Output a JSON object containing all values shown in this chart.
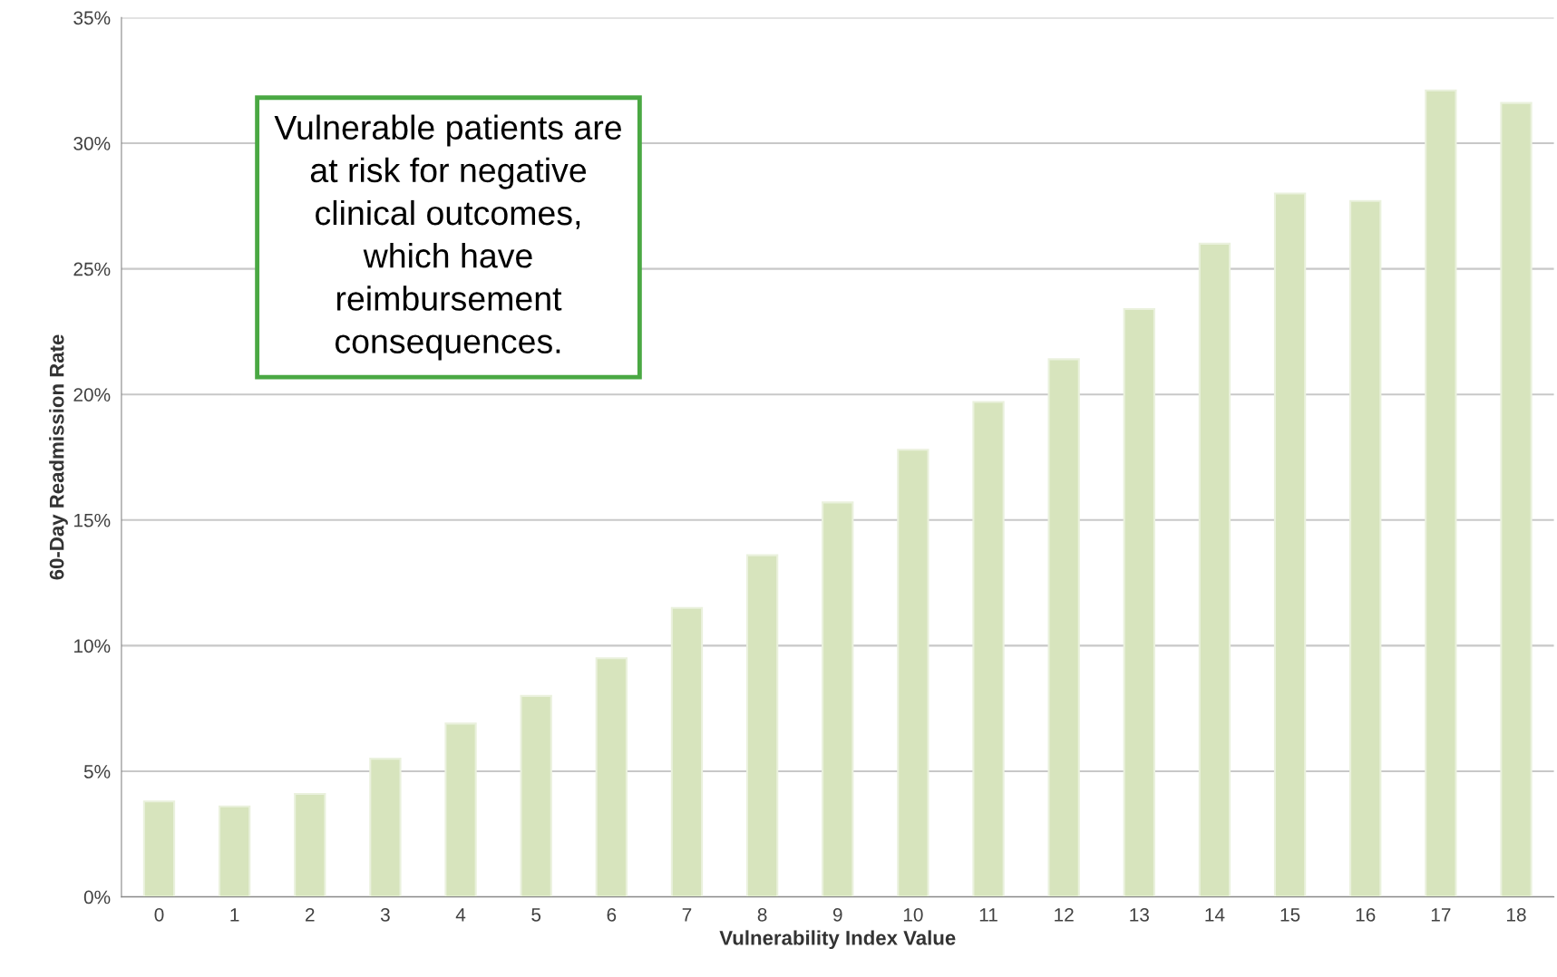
{
  "chart_data": {
    "type": "bar",
    "xlabel": "Vulnerability Index Value",
    "ylabel": "60-Day Readmission Rate",
    "categories": [
      "0",
      "1",
      "2",
      "3",
      "4",
      "5",
      "6",
      "7",
      "8",
      "9",
      "10",
      "11",
      "12",
      "13",
      "14",
      "15",
      "16",
      "17",
      "18"
    ],
    "values": [
      3.8,
      3.6,
      4.1,
      5.5,
      6.9,
      8.0,
      9.5,
      11.5,
      13.6,
      15.7,
      17.8,
      19.7,
      21.4,
      23.4,
      26.0,
      28.0,
      27.7,
      32.1,
      31.6
    ],
    "color": "#d7e4bd",
    "ylim": [
      0,
      35
    ],
    "yticks": [
      {
        "value": 0,
        "label": "0%"
      },
      {
        "value": 5,
        "label": "5%"
      },
      {
        "value": 10,
        "label": "10%"
      },
      {
        "value": 15,
        "label": "15%"
      },
      {
        "value": 20,
        "label": "20%"
      },
      {
        "value": 25,
        "label": "25%"
      },
      {
        "value": 30,
        "label": "30%"
      },
      {
        "value": 35,
        "label": "35%"
      }
    ],
    "grid": "y",
    "legend": false,
    "annotations": [
      "Vulnerable patients are\nat risk for negative\nclinical outcomes,\nwhich have\nreimbursement\nconsequences."
    ]
  }
}
